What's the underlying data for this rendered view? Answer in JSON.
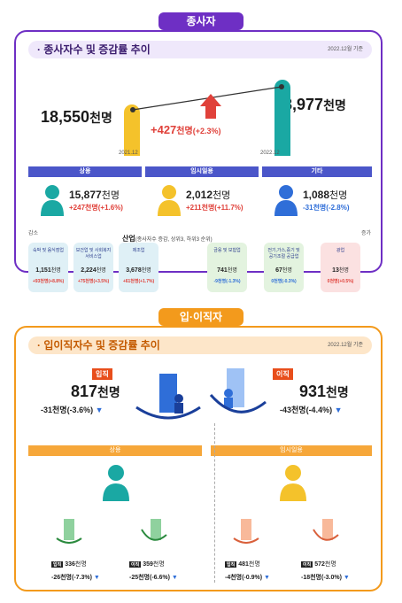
{
  "top": {
    "tab": "종사자",
    "heading": "· 종사자수 및 증감률 추이",
    "asof": "2022.12월 기준",
    "left": {
      "num": "18,550",
      "unit": "천명",
      "date": "2021.12"
    },
    "right": {
      "num": "18,977",
      "unit": "천명",
      "date": "2022.12"
    },
    "delta": {
      "num": "+427",
      "unit": "천명",
      "pct": "(+2.3%)"
    },
    "categories": [
      {
        "label": "상용",
        "num": "15,877",
        "unit": "천명",
        "change": "+247천명(+1.6%)",
        "dir": "up",
        "color": "#1aa8a3"
      },
      {
        "label": "임시일용",
        "num": "2,012",
        "unit": "천명",
        "change": "+211천명(+11.7%)",
        "dir": "up",
        "color": "#f4c22b"
      },
      {
        "label": "기타",
        "num": "1,088",
        "unit": "천명",
        "change": "-31천명(-2.8%)",
        "dir": "down",
        "color": "#2f6ed8"
      }
    ],
    "low_label": "감소",
    "high_label": "증가",
    "industry_title": "산업",
    "industry_sub": "(종사자수 증감, 상위3, 하위3 순위)",
    "industries": [
      {
        "name": "숙박 및 음식점업",
        "value": "1,151",
        "unit": "천명",
        "change": "+93천명(+8.8%)",
        "bg": "#dff0f6"
      },
      {
        "name": "보건업 및 사회복지 서비스업",
        "value": "2,224",
        "unit": "천명",
        "change": "+75천명(+3.5%)",
        "bg": "#dff0f6"
      },
      {
        "name": "제조업",
        "value": "3,678",
        "unit": "천명",
        "change": "+61천명(+1.7%)",
        "bg": "#dff0f6"
      },
      {
        "name": "금융 및 보험업",
        "value": "741",
        "unit": "천명",
        "change": "-9천명(-1.3%)",
        "bg": "#e3f3df"
      },
      {
        "name": "전기,가스,증기 및 공기조절 공급업",
        "value": "67",
        "unit": "천명",
        "change": "0천명(-0.3%)",
        "bg": "#e3f3df"
      },
      {
        "name": "광업",
        "value": "13",
        "unit": "천명",
        "change": "0천명(+0.5%)",
        "bg": "#fbe1e1"
      }
    ]
  },
  "bottom": {
    "tab": "입·이직자",
    "heading": "· 입이직자수 및 증감률 추이",
    "asof": "2022.12월 기준",
    "in": {
      "tag": "입직",
      "num": "817",
      "unit": "천명",
      "change": "-31천명(-3.6%)"
    },
    "out": {
      "tag": "이직",
      "num": "931",
      "unit": "천명",
      "change": "-43천명(-4.4%)"
    },
    "groups": [
      {
        "label": "상용",
        "color": "#1aa8a3",
        "in": {
          "tag": "입직",
          "num": "336",
          "unit": "천명",
          "change": "-26천명(-7.3%)"
        },
        "out": {
          "tag": "이직",
          "num": "359",
          "unit": "천명",
          "change": "-25천명(-6.6%)"
        }
      },
      {
        "label": "임시일용",
        "color": "#f4c22b",
        "in": {
          "tag": "입직",
          "num": "481",
          "unit": "천명",
          "change": "-4천명(-0.9%)"
        },
        "out": {
          "tag": "이직",
          "num": "572",
          "unit": "천명",
          "change": "-18천명(-3.0%)"
        }
      }
    ]
  },
  "colors": {
    "purple": "#6e2fc4",
    "orange": "#f39a1c",
    "up": "#e0413a",
    "down": "#2f6ed8"
  }
}
